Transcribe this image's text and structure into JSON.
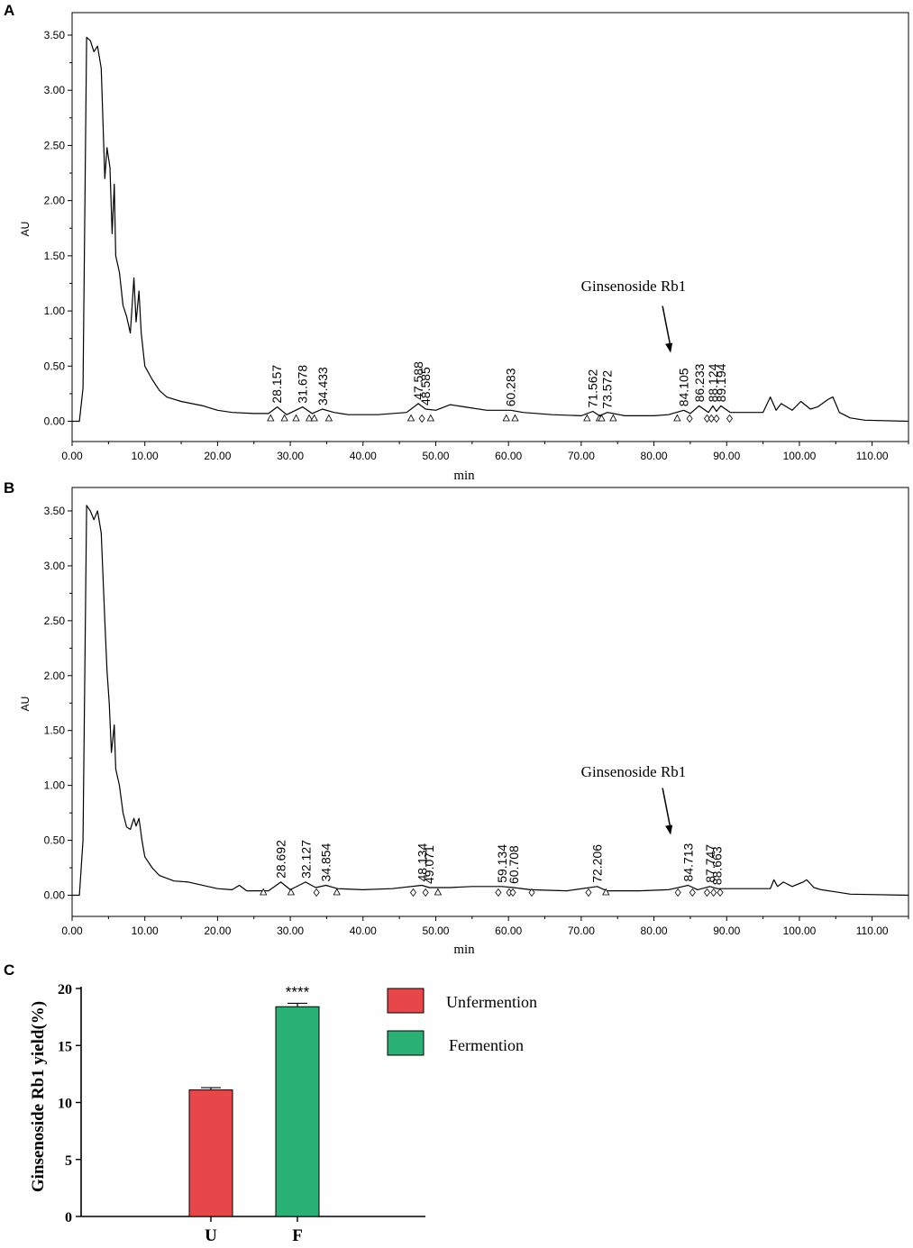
{
  "chart_data": [
    {
      "panel": "A",
      "type": "line",
      "xlabel": "min",
      "ylabel": "AU",
      "xlim": [
        0,
        115
      ],
      "ylim": [
        -0.1,
        3.6
      ],
      "xticks": [
        "0.00",
        "10.00",
        "20.00",
        "30.00",
        "40.00",
        "50.00",
        "60.00",
        "70.00",
        "80.00",
        "90.00",
        "100.00",
        "110.00"
      ],
      "yticks": [
        "0.00",
        "0.50",
        "1.00",
        "1.50",
        "2.00",
        "2.50",
        "3.00",
        "3.50"
      ],
      "trace": [
        [
          0,
          0
        ],
        [
          1,
          0
        ],
        [
          1.5,
          0.3
        ],
        [
          2,
          3.48
        ],
        [
          2.5,
          3.45
        ],
        [
          3,
          3.35
        ],
        [
          3.5,
          3.4
        ],
        [
          4,
          3.2
        ],
        [
          4.5,
          2.2
        ],
        [
          4.8,
          2.48
        ],
        [
          5.2,
          2.3
        ],
        [
          5.5,
          1.7
        ],
        [
          5.8,
          2.15
        ],
        [
          6,
          1.5
        ],
        [
          6.5,
          1.35
        ],
        [
          7,
          1.05
        ],
        [
          7.5,
          0.95
        ],
        [
          8,
          0.8
        ],
        [
          8.5,
          1.3
        ],
        [
          8.8,
          0.9
        ],
        [
          9.2,
          1.18
        ],
        [
          9.5,
          0.8
        ],
        [
          10,
          0.5
        ],
        [
          11,
          0.38
        ],
        [
          12,
          0.28
        ],
        [
          13,
          0.22
        ],
        [
          15,
          0.18
        ],
        [
          18,
          0.14
        ],
        [
          20,
          0.1
        ],
        [
          22,
          0.08
        ],
        [
          25,
          0.07
        ],
        [
          27,
          0.07
        ],
        [
          28.2,
          0.13
        ],
        [
          29.5,
          0.06
        ],
        [
          31.7,
          0.13
        ],
        [
          33,
          0.07
        ],
        [
          34.4,
          0.11
        ],
        [
          36,
          0.08
        ],
        [
          38,
          0.06
        ],
        [
          42,
          0.06
        ],
        [
          46,
          0.08
        ],
        [
          47.6,
          0.16
        ],
        [
          48.6,
          0.11
        ],
        [
          50,
          0.1
        ],
        [
          52,
          0.15
        ],
        [
          54,
          0.13
        ],
        [
          57,
          0.1
        ],
        [
          60.3,
          0.1
        ],
        [
          62,
          0.08
        ],
        [
          66,
          0.06
        ],
        [
          70,
          0.05
        ],
        [
          71.6,
          0.09
        ],
        [
          72.5,
          0.05
        ],
        [
          73.6,
          0.08
        ],
        [
          76,
          0.05
        ],
        [
          80,
          0.05
        ],
        [
          82,
          0.06
        ],
        [
          84.1,
          0.1
        ],
        [
          85,
          0.07
        ],
        [
          86.2,
          0.14
        ],
        [
          87.5,
          0.08
        ],
        [
          88.1,
          0.14
        ],
        [
          88.6,
          0.09
        ],
        [
          89.2,
          0.14
        ],
        [
          90.5,
          0.08
        ],
        [
          93,
          0.08
        ],
        [
          95,
          0.08
        ],
        [
          96,
          0.22
        ],
        [
          96.8,
          0.1
        ],
        [
          97.5,
          0.16
        ],
        [
          99,
          0.1
        ],
        [
          100.2,
          0.18
        ],
        [
          101.5,
          0.11
        ],
        [
          102.5,
          0.13
        ],
        [
          104,
          0.2
        ],
        [
          104.6,
          0.22
        ],
        [
          105.5,
          0.08
        ],
        [
          107,
          0.03
        ],
        [
          109,
          0.01
        ],
        [
          115,
          0
        ]
      ],
      "peak_labels": [
        {
          "rt": 28.157,
          "text": "28.157",
          "y": 0.13
        },
        {
          "rt": 31.678,
          "text": "31.678",
          "y": 0.13
        },
        {
          "rt": 34.433,
          "text": "34.433",
          "y": 0.11
        },
        {
          "rt": 47.588,
          "text": "47.588",
          "y": 0.16
        },
        {
          "rt": 48.585,
          "text": "48.585",
          "y": 0.11
        },
        {
          "rt": 60.283,
          "text": "60.283",
          "y": 0.1
        },
        {
          "rt": 71.562,
          "text": "71.562",
          "y": 0.09
        },
        {
          "rt": 73.572,
          "text": "73.572",
          "y": 0.08
        },
        {
          "rt": 84.105,
          "text": "84.105",
          "y": 0.1
        },
        {
          "rt": 86.233,
          "text": "86.233",
          "y": 0.14
        },
        {
          "rt": 88.124,
          "text": "88.124",
          "y": 0.14
        },
        {
          "rt": 89.194,
          "text": "89.194",
          "y": 0.14
        }
      ],
      "markers": [
        {
          "x": 27.3,
          "s": "tri"
        },
        {
          "x": 29.2,
          "s": "tri"
        },
        {
          "x": 30.8,
          "s": "tri"
        },
        {
          "x": 32.6,
          "s": "tri"
        },
        {
          "x": 33.3,
          "s": "tri"
        },
        {
          "x": 35.3,
          "s": "tri"
        },
        {
          "x": 46.6,
          "s": "tri"
        },
        {
          "x": 48.1,
          "s": "dia"
        },
        {
          "x": 49.3,
          "s": "tri"
        },
        {
          "x": 59.7,
          "s": "tri"
        },
        {
          "x": 60.9,
          "s": "tri"
        },
        {
          "x": 70.8,
          "s": "tri"
        },
        {
          "x": 72.5,
          "s": "tri"
        },
        {
          "x": 72.8,
          "s": "tri"
        },
        {
          "x": 74.4,
          "s": "tri"
        },
        {
          "x": 83.2,
          "s": "tri"
        },
        {
          "x": 84.9,
          "s": "dia"
        },
        {
          "x": 87.3,
          "s": "dia"
        },
        {
          "x": 87.9,
          "s": "dia"
        },
        {
          "x": 88.6,
          "s": "dia"
        },
        {
          "x": 90.4,
          "s": "dia"
        }
      ],
      "annotation": {
        "text": "Ginsenoside Rb1",
        "target_rt": 82.3,
        "target_y": 0.62
      }
    },
    {
      "panel": "B",
      "type": "line",
      "xlabel": "min",
      "ylabel": "AU",
      "xlim": [
        0,
        115
      ],
      "ylim": [
        -0.1,
        3.6
      ],
      "xticks": [
        "0.00",
        "10.00",
        "20.00",
        "30.00",
        "40.00",
        "50.00",
        "60.00",
        "70.00",
        "80.00",
        "90.00",
        "100.00",
        "110.00"
      ],
      "yticks": [
        "0.00",
        "0.50",
        "1.00",
        "1.50",
        "2.00",
        "2.50",
        "3.00",
        "3.50"
      ],
      "trace": [
        [
          0,
          0
        ],
        [
          1,
          0
        ],
        [
          1.5,
          0.5
        ],
        [
          2,
          3.55
        ],
        [
          2.5,
          3.5
        ],
        [
          3,
          3.42
        ],
        [
          3.5,
          3.5
        ],
        [
          4,
          3.3
        ],
        [
          4.5,
          2.5
        ],
        [
          4.8,
          2.05
        ],
        [
          5.1,
          1.75
        ],
        [
          5.4,
          1.3
        ],
        [
          5.8,
          1.55
        ],
        [
          6,
          1.15
        ],
        [
          6.5,
          1.0
        ],
        [
          7,
          0.75
        ],
        [
          7.5,
          0.62
        ],
        [
          8,
          0.6
        ],
        [
          8.5,
          0.7
        ],
        [
          8.8,
          0.63
        ],
        [
          9.2,
          0.7
        ],
        [
          9.6,
          0.5
        ],
        [
          10,
          0.35
        ],
        [
          11,
          0.25
        ],
        [
          12,
          0.18
        ],
        [
          14,
          0.13
        ],
        [
          16,
          0.12
        ],
        [
          20,
          0.06
        ],
        [
          22,
          0.05
        ],
        [
          23,
          0.09
        ],
        [
          24,
          0.04
        ],
        [
          27,
          0.04
        ],
        [
          28.7,
          0.12
        ],
        [
          30,
          0.05
        ],
        [
          32.1,
          0.12
        ],
        [
          33.5,
          0.07
        ],
        [
          34.9,
          0.09
        ],
        [
          36.5,
          0.06
        ],
        [
          40,
          0.05
        ],
        [
          44,
          0.06
        ],
        [
          48.1,
          0.09
        ],
        [
          49.1,
          0.07
        ],
        [
          52,
          0.07
        ],
        [
          55,
          0.08
        ],
        [
          59.1,
          0.08
        ],
        [
          60.7,
          0.07
        ],
        [
          63,
          0.05
        ],
        [
          68,
          0.04
        ],
        [
          72.2,
          0.08
        ],
        [
          73.5,
          0.04
        ],
        [
          78,
          0.04
        ],
        [
          82,
          0.05
        ],
        [
          84.7,
          0.09
        ],
        [
          86,
          0.05
        ],
        [
          87.7,
          0.08
        ],
        [
          88.7,
          0.06
        ],
        [
          90,
          0.06
        ],
        [
          93,
          0.06
        ],
        [
          96,
          0.06
        ],
        [
          96.5,
          0.14
        ],
        [
          97,
          0.08
        ],
        [
          97.8,
          0.12
        ],
        [
          99,
          0.08
        ],
        [
          100.5,
          0.12
        ],
        [
          101,
          0.14
        ],
        [
          102,
          0.07
        ],
        [
          103,
          0.05
        ],
        [
          105,
          0.03
        ],
        [
          107,
          0.01
        ],
        [
          115,
          0
        ]
      ],
      "peak_labels": [
        {
          "rt": 28.692,
          "text": "28.692",
          "y": 0.12
        },
        {
          "rt": 32.127,
          "text": "32.127",
          "y": 0.12
        },
        {
          "rt": 34.854,
          "text": "34.854",
          "y": 0.09
        },
        {
          "rt": 48.134,
          "text": "48.134",
          "y": 0.09
        },
        {
          "rt": 49.071,
          "text": "49.071",
          "y": 0.07
        },
        {
          "rt": 59.134,
          "text": "59.134",
          "y": 0.08
        },
        {
          "rt": 60.708,
          "text": "60.708",
          "y": 0.07
        },
        {
          "rt": 72.206,
          "text": "72.206",
          "y": 0.08
        },
        {
          "rt": 84.713,
          "text": "84.713",
          "y": 0.09
        },
        {
          "rt": 87.747,
          "text": "87.747",
          "y": 0.08
        },
        {
          "rt": 88.663,
          "text": "88.663",
          "y": 0.06
        }
      ],
      "markers": [
        {
          "x": 26.3,
          "s": "tri"
        },
        {
          "x": 30.1,
          "s": "tri"
        },
        {
          "x": 33.6,
          "s": "dia"
        },
        {
          "x": 36.4,
          "s": "tri"
        },
        {
          "x": 46.9,
          "s": "dia"
        },
        {
          "x": 48.6,
          "s": "dia"
        },
        {
          "x": 50.3,
          "s": "tri"
        },
        {
          "x": 58.6,
          "s": "dia"
        },
        {
          "x": 60.1,
          "s": "dia"
        },
        {
          "x": 60.6,
          "s": "dia"
        },
        {
          "x": 63.2,
          "s": "dia"
        },
        {
          "x": 71.0,
          "s": "dia"
        },
        {
          "x": 73.4,
          "s": "tri"
        },
        {
          "x": 83.3,
          "s": "dia"
        },
        {
          "x": 85.3,
          "s": "dia"
        },
        {
          "x": 87.3,
          "s": "dia"
        },
        {
          "x": 88.2,
          "s": "dia"
        },
        {
          "x": 89.1,
          "s": "dia"
        }
      ],
      "annotation": {
        "text": "Ginsenoside Rb1",
        "target_rt": 82.3,
        "target_y": 0.55
      }
    },
    {
      "panel": "C",
      "type": "bar",
      "categories": [
        "U",
        "F"
      ],
      "values": [
        11.1,
        18.4
      ],
      "errors": [
        0.2,
        0.3
      ],
      "colors": [
        "#e8474a",
        "#2ab274"
      ],
      "ylabel": "Ginsenoside Rb1 yield(%)",
      "ylim": [
        0,
        20
      ],
      "yticks": [
        "0",
        "5",
        "10",
        "15",
        "20"
      ],
      "significance": "****",
      "legend": [
        {
          "label": "Unfermention",
          "color": "#e8474a"
        },
        {
          "label": "Fermention",
          "color": "#2ab274"
        }
      ]
    }
  ]
}
